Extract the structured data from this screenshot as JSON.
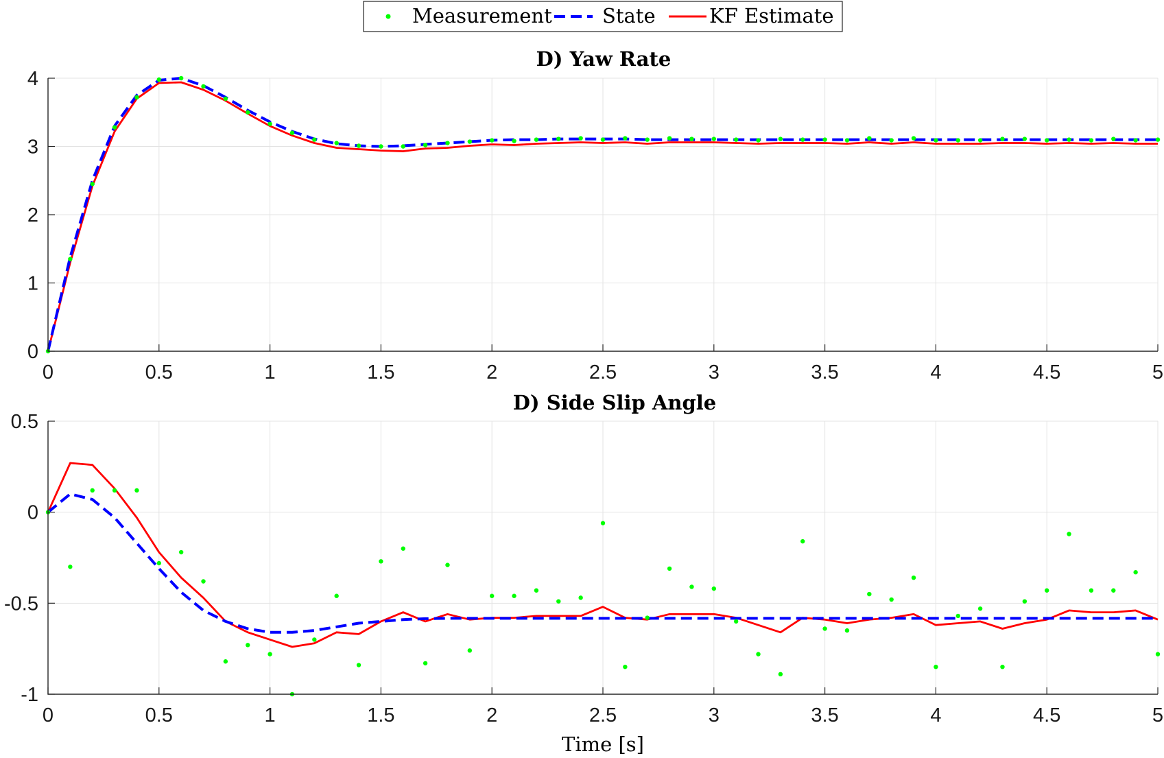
{
  "legend": {
    "items": [
      {
        "label": "Measurement",
        "color": "#00ff00",
        "style": "dot"
      },
      {
        "label": "State",
        "color": "#0000ff",
        "style": "dashed"
      },
      {
        "label": "KF Estimate",
        "color": "#ff0000",
        "style": "solid"
      }
    ]
  },
  "chart_data": [
    {
      "type": "line",
      "title": "D) Yaw Rate",
      "xlabel": "",
      "ylabel": "",
      "xlim": [
        0,
        5
      ],
      "ylim": [
        0,
        4
      ],
      "xticks": [
        "0",
        "0.5",
        "1",
        "1.5",
        "2",
        "2.5",
        "3",
        "3.5",
        "4",
        "4.5",
        "5"
      ],
      "yticks": [
        "0",
        "1",
        "2",
        "3",
        "4"
      ],
      "grid": true,
      "x": [
        0,
        0.1,
        0.2,
        0.3,
        0.4,
        0.5,
        0.6,
        0.7,
        0.8,
        0.9,
        1.0,
        1.1,
        1.2,
        1.3,
        1.4,
        1.5,
        1.6,
        1.7,
        1.8,
        1.9,
        2.0,
        2.1,
        2.2,
        2.3,
        2.4,
        2.5,
        2.6,
        2.7,
        2.8,
        2.9,
        3.0,
        3.1,
        3.2,
        3.3,
        3.4,
        3.5,
        3.6,
        3.7,
        3.8,
        3.9,
        4.0,
        4.1,
        4.2,
        4.3,
        4.4,
        4.5,
        4.6,
        4.7,
        4.8,
        4.9,
        5.0
      ],
      "series": [
        {
          "name": "Measurement",
          "style": "dot",
          "color": "#00ff00",
          "values": [
            0,
            1.35,
            2.45,
            3.28,
            3.72,
            3.98,
            4.0,
            3.88,
            3.7,
            3.5,
            3.33,
            3.2,
            3.1,
            3.05,
            3.01,
            3.0,
            3.0,
            3.02,
            3.05,
            3.07,
            3.09,
            3.08,
            3.1,
            3.11,
            3.12,
            3.1,
            3.12,
            3.1,
            3.12,
            3.11,
            3.11,
            3.1,
            3.09,
            3.11,
            3.1,
            3.1,
            3.09,
            3.12,
            3.09,
            3.12,
            3.09,
            3.09,
            3.09,
            3.11,
            3.11,
            3.09,
            3.1,
            3.09,
            3.11,
            3.09,
            3.1
          ]
        },
        {
          "name": "State",
          "style": "dashed",
          "color": "#0000ff",
          "values": [
            0,
            1.38,
            2.5,
            3.3,
            3.75,
            3.97,
            4.0,
            3.89,
            3.72,
            3.53,
            3.36,
            3.22,
            3.11,
            3.04,
            3.01,
            3.0,
            3.01,
            3.03,
            3.05,
            3.07,
            3.09,
            3.1,
            3.1,
            3.11,
            3.11,
            3.11,
            3.11,
            3.1,
            3.1,
            3.1,
            3.1,
            3.1,
            3.1,
            3.1,
            3.1,
            3.1,
            3.1,
            3.1,
            3.1,
            3.1,
            3.1,
            3.1,
            3.1,
            3.1,
            3.1,
            3.1,
            3.1,
            3.1,
            3.1,
            3.1,
            3.1
          ]
        },
        {
          "name": "KF Estimate",
          "style": "solid",
          "color": "#ff0000",
          "values": [
            0,
            1.3,
            2.42,
            3.22,
            3.7,
            3.93,
            3.94,
            3.83,
            3.67,
            3.48,
            3.3,
            3.16,
            3.05,
            2.98,
            2.96,
            2.94,
            2.93,
            2.97,
            2.98,
            3.01,
            3.03,
            3.02,
            3.04,
            3.05,
            3.06,
            3.05,
            3.06,
            3.04,
            3.06,
            3.06,
            3.06,
            3.05,
            3.04,
            3.05,
            3.05,
            3.05,
            3.04,
            3.06,
            3.04,
            3.06,
            3.04,
            3.04,
            3.04,
            3.05,
            3.05,
            3.04,
            3.05,
            3.04,
            3.05,
            3.04,
            3.04
          ]
        }
      ]
    },
    {
      "type": "line",
      "title": "D) Side Slip Angle",
      "xlabel": "Time [s]",
      "ylabel": "",
      "xlim": [
        0,
        5
      ],
      "ylim": [
        -1,
        0.5
      ],
      "xticks": [
        "0",
        "0.5",
        "1",
        "1.5",
        "2",
        "2.5",
        "3",
        "3.5",
        "4",
        "4.5",
        "5"
      ],
      "yticks": [
        "0.5",
        "0",
        "-0.5",
        "-1"
      ],
      "grid": true,
      "x": [
        0,
        0.1,
        0.2,
        0.3,
        0.4,
        0.5,
        0.6,
        0.7,
        0.8,
        0.9,
        1.0,
        1.1,
        1.2,
        1.3,
        1.4,
        1.5,
        1.6,
        1.7,
        1.8,
        1.9,
        2.0,
        2.1,
        2.2,
        2.3,
        2.4,
        2.5,
        2.6,
        2.7,
        2.8,
        2.9,
        3.0,
        3.1,
        3.2,
        3.3,
        3.4,
        3.5,
        3.6,
        3.7,
        3.8,
        3.9,
        4.0,
        4.1,
        4.2,
        4.3,
        4.4,
        4.5,
        4.6,
        4.7,
        4.8,
        4.9,
        5.0
      ],
      "series": [
        {
          "name": "Measurement",
          "style": "dot",
          "color": "#00ff00",
          "values": [
            0,
            -0.3,
            0.12,
            0.12,
            0.12,
            -0.28,
            -0.22,
            -0.38,
            -0.82,
            -0.73,
            -0.78,
            -1.0,
            -0.7,
            -0.46,
            -0.84,
            -0.27,
            -0.2,
            -0.83,
            -0.29,
            -0.76,
            -0.46,
            -0.46,
            -0.43,
            -0.49,
            -0.47,
            -0.06,
            -0.85,
            -0.58,
            -0.31,
            -0.41,
            -0.42,
            -0.6,
            -0.78,
            -0.89,
            -0.16,
            -0.64,
            -0.65,
            -0.45,
            -0.48,
            -0.36,
            -0.85,
            -0.57,
            -0.53,
            -0.85,
            -0.49,
            -0.43,
            -0.12,
            -0.43,
            -0.43,
            -0.33,
            -0.78
          ]
        },
        {
          "name": "State",
          "style": "dashed",
          "color": "#0000ff",
          "values": [
            0,
            0.1,
            0.07,
            -0.03,
            -0.17,
            -0.31,
            -0.44,
            -0.54,
            -0.6,
            -0.64,
            -0.66,
            -0.66,
            -0.65,
            -0.63,
            -0.61,
            -0.6,
            -0.59,
            -0.585,
            -0.583,
            -0.583,
            -0.583,
            -0.583,
            -0.583,
            -0.583,
            -0.583,
            -0.583,
            -0.583,
            -0.583,
            -0.583,
            -0.583,
            -0.583,
            -0.583,
            -0.583,
            -0.583,
            -0.583,
            -0.583,
            -0.583,
            -0.583,
            -0.583,
            -0.583,
            -0.583,
            -0.583,
            -0.583,
            -0.583,
            -0.583,
            -0.583,
            -0.583,
            -0.583,
            -0.583,
            -0.583,
            -0.583
          ]
        },
        {
          "name": "KF Estimate",
          "style": "solid",
          "color": "#ff0000",
          "values": [
            0,
            0.27,
            0.26,
            0.13,
            -0.03,
            -0.22,
            -0.36,
            -0.47,
            -0.6,
            -0.66,
            -0.7,
            -0.74,
            -0.72,
            -0.66,
            -0.67,
            -0.6,
            -0.55,
            -0.6,
            -0.56,
            -0.59,
            -0.58,
            -0.58,
            -0.57,
            -0.57,
            -0.57,
            -0.52,
            -0.58,
            -0.59,
            -0.56,
            -0.56,
            -0.56,
            -0.58,
            -0.62,
            -0.66,
            -0.58,
            -0.59,
            -0.61,
            -0.59,
            -0.58,
            -0.56,
            -0.62,
            -0.61,
            -0.6,
            -0.64,
            -0.61,
            -0.59,
            -0.54,
            -0.55,
            -0.55,
            -0.54,
            -0.59
          ]
        }
      ]
    }
  ]
}
